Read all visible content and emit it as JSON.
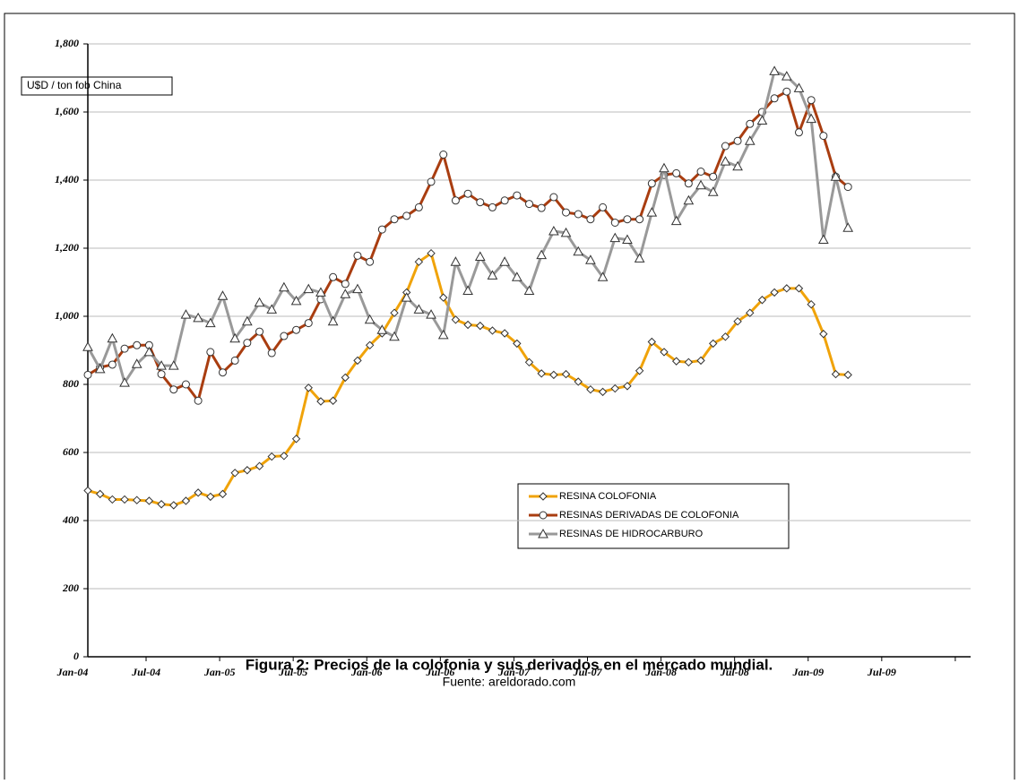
{
  "chart_data": {
    "type": "line",
    "ylabel": "U$D / ton fob China",
    "caption": "Figura 2: Precios de la colofonia y sus derivados en el mercado mundial.",
    "source": "Fuente: areldorado.com",
    "categories": [
      "Jan-04",
      null,
      null,
      null,
      null,
      null,
      "Jul-04",
      null,
      null,
      null,
      null,
      null,
      "Jan-05",
      null,
      null,
      null,
      null,
      null,
      "Jul-05",
      null,
      null,
      null,
      null,
      null,
      "Jan-06",
      null,
      null,
      null,
      null,
      null,
      "Jul-06",
      null,
      null,
      null,
      null,
      null,
      "Jan-07",
      null,
      null,
      null,
      null,
      null,
      "Jul-07",
      null,
      null,
      null,
      null,
      null,
      "Jan-08",
      null,
      null,
      null,
      null,
      null,
      "Jul-08",
      null,
      null,
      null,
      null,
      null,
      "Jan-09",
      null,
      null,
      null,
      null,
      null,
      "Jul-09",
      null,
      null,
      null,
      null,
      null
    ],
    "ylim": [
      0,
      1800
    ],
    "yticks": [
      0,
      200,
      400,
      600,
      800,
      {
        "value": 1000,
        "label": "1,000"
      },
      {
        "value": 1200,
        "label": "1,200"
      },
      {
        "value": 1400,
        "label": "1,400"
      },
      {
        "value": 1600,
        "label": "1,600"
      },
      {
        "value": 1800,
        "label": "1,800"
      }
    ],
    "grid": true,
    "series": [
      {
        "name": "RESINA COLOFONIA",
        "color": "#f0a30a",
        "marker": "diamond",
        "values": [
          488,
          478,
          462,
          462,
          460,
          458,
          448,
          445,
          458,
          482,
          470,
          478,
          540,
          548,
          560,
          588,
          590,
          640,
          790,
          750,
          752,
          820,
          870,
          915,
          950,
          1010,
          1070,
          1160,
          1185,
          1055,
          990,
          975,
          972,
          958,
          950,
          920,
          865,
          832,
          828,
          830,
          808,
          785,
          778,
          788,
          795,
          840,
          925,
          895,
          868,
          865,
          870,
          920,
          940,
          985,
          1010,
          1048,
          1070,
          1082,
          1082,
          1035,
          948,
          830,
          828,
          null,
          null,
          null,
          null,
          null,
          null,
          null,
          null,
          null
        ]
      },
      {
        "name": "RESINAS DERIVADAS DE COLOFONIA",
        "color": "#a93d10",
        "marker": "circle",
        "values": [
          828,
          850,
          858,
          905,
          915,
          915,
          830,
          785,
          800,
          752,
          895,
          835,
          870,
          922,
          955,
          892,
          942,
          960,
          980,
          1050,
          1115,
          1095,
          1178,
          1160,
          1255,
          1285,
          1295,
          1320,
          1395,
          1475,
          1340,
          1360,
          1335,
          1320,
          1340,
          1355,
          1330,
          1318,
          1350,
          1305,
          1300,
          1285,
          1320,
          1275,
          1285,
          1285,
          1390,
          1415,
          1420,
          1390,
          1425,
          1410,
          1500,
          1515,
          1565,
          1600,
          1640,
          1660,
          1540,
          1635,
          1530,
          1410,
          1380,
          null,
          null,
          null,
          null,
          null,
          null,
          null,
          null,
          null
        ]
      },
      {
        "name": "RESINAS DE HIDROCARBURO",
        "color": "#999999",
        "marker": "triangle",
        "values": [
          910,
          845,
          935,
          805,
          860,
          895,
          855,
          855,
          1005,
          995,
          980,
          1060,
          935,
          985,
          1040,
          1020,
          1085,
          1045,
          1080,
          1070,
          985,
          1065,
          1080,
          990,
          960,
          940,
          1055,
          1020,
          1005,
          945,
          1160,
          1075,
          1175,
          1120,
          1160,
          1115,
          1075,
          1180,
          1250,
          1245,
          1190,
          1165,
          1115,
          1230,
          1225,
          1170,
          1305,
          1435,
          1280,
          1340,
          1385,
          1365,
          1455,
          1440,
          1515,
          1575,
          1720,
          1705,
          1670,
          1580,
          1225,
          1410,
          1260,
          null,
          null,
          null,
          null,
          null,
          null,
          null,
          null,
          null
        ]
      }
    ]
  }
}
